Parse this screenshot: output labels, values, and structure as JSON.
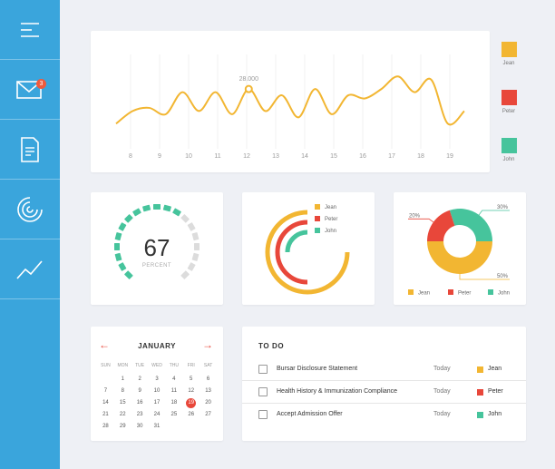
{
  "colors": {
    "sidebar": "#3aa5dc",
    "jean": "#f2b632",
    "peter": "#e8473a",
    "john": "#46c49c",
    "gauge_inactive": "#dcdcdc"
  },
  "sidebar": {
    "items": [
      {
        "icon": "menu-icon"
      },
      {
        "icon": "mail-icon",
        "badge": "3"
      },
      {
        "icon": "document-icon"
      },
      {
        "icon": "radial-chart-icon"
      },
      {
        "icon": "trend-icon"
      }
    ]
  },
  "legend": [
    {
      "name": "Jean",
      "color": "#f2b632"
    },
    {
      "name": "Peter",
      "color": "#e8473a"
    },
    {
      "name": "John",
      "color": "#46c49c"
    }
  ],
  "chart_data": [
    {
      "type": "line",
      "x_ticks": [
        "8",
        "9",
        "10",
        "11",
        "12",
        "13",
        "14",
        "15",
        "16",
        "17",
        "18",
        "19"
      ],
      "series": [
        {
          "name": "Jean",
          "values": [
            18,
            22,
            23,
            21,
            28,
            22,
            28,
            21,
            29,
            22,
            27,
            20,
            29,
            21,
            27,
            26,
            29,
            33,
            28,
            32,
            18,
            22
          ]
        }
      ],
      "annotation": "28.000",
      "ylim": [
        10,
        40
      ]
    },
    {
      "type": "gauge",
      "value": 67,
      "caption": "PERCENT",
      "segments_total": 19,
      "segments_active": 12
    },
    {
      "type": "radial_bar",
      "legend": [
        "Jean",
        "Peter",
        "John"
      ],
      "values": [
        0.75,
        0.5,
        0.25
      ]
    },
    {
      "type": "pie",
      "categories": [
        "Jean",
        "Peter",
        "John"
      ],
      "values": [
        50,
        20,
        30
      ],
      "labels": [
        "50%",
        "20%",
        "30%"
      ]
    }
  ],
  "calendar": {
    "month": "JANUARY",
    "prev": "←",
    "next": "→",
    "day_headers": [
      "SUN",
      "MON",
      "TUE",
      "WED",
      "THU",
      "FRI",
      "SAT"
    ],
    "days": [
      "1",
      "2",
      "3",
      "4",
      "5",
      "6",
      "7",
      "8",
      "9",
      "10",
      "11",
      "12",
      "13",
      "14",
      "15",
      "16",
      "17",
      "18",
      "19",
      "20",
      "21",
      "22",
      "23",
      "24",
      "25",
      "26",
      "27",
      "28",
      "29",
      "30",
      "31"
    ],
    "first_weekday": 1,
    "selected": "19"
  },
  "todo": {
    "title": "TO DO",
    "items": [
      {
        "task": "Bursar Disclosure Statement",
        "when": "Today",
        "who": "Jean",
        "color": "#f2b632"
      },
      {
        "task": "Health History & Immunization Compliance",
        "when": "Today",
        "who": "Peter",
        "color": "#e8473a"
      },
      {
        "task": "Accept Admission Offer",
        "when": "Today",
        "who": "John",
        "color": "#46c49c"
      }
    ]
  }
}
